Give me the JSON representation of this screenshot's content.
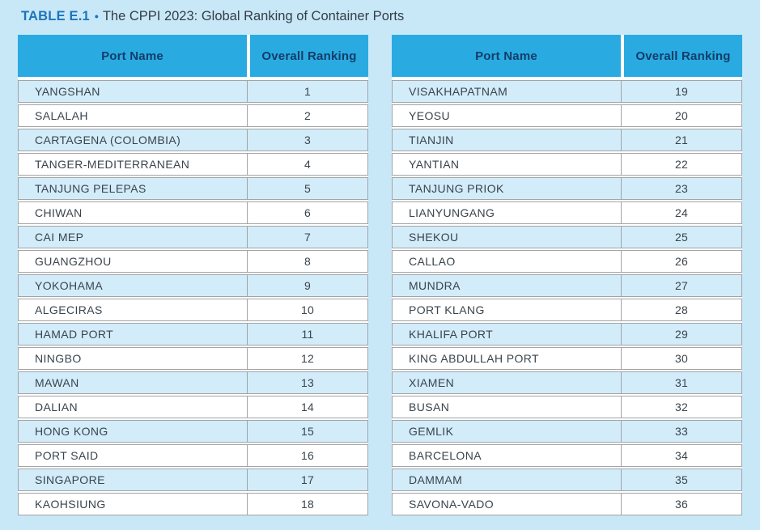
{
  "title": {
    "label": "TABLE E.1",
    "bullet": "•",
    "text": "The CPPI 2023: Global Ranking of Container Ports"
  },
  "columns": {
    "port": "Port Name",
    "ranking": "Overall Ranking"
  },
  "tables": [
    {
      "rows": [
        {
          "port": "YANGSHAN",
          "rank": "1"
        },
        {
          "port": "SALALAH",
          "rank": "2"
        },
        {
          "port": "CARTAGENA (COLOMBIA)",
          "rank": "3"
        },
        {
          "port": "TANGER-MEDITERRANEAN",
          "rank": "4"
        },
        {
          "port": "TANJUNG PELEPAS",
          "rank": "5"
        },
        {
          "port": "CHIWAN",
          "rank": "6"
        },
        {
          "port": "CAI MEP",
          "rank": "7"
        },
        {
          "port": "GUANGZHOU",
          "rank": "8"
        },
        {
          "port": "YOKOHAMA",
          "rank": "9"
        },
        {
          "port": "ALGECIRAS",
          "rank": "10"
        },
        {
          "port": "HAMAD PORT",
          "rank": "11"
        },
        {
          "port": "NINGBO",
          "rank": "12"
        },
        {
          "port": "MAWAN",
          "rank": "13"
        },
        {
          "port": "DALIAN",
          "rank": "14"
        },
        {
          "port": "HONG KONG",
          "rank": "15"
        },
        {
          "port": "PORT SAID",
          "rank": "16"
        },
        {
          "port": "SINGAPORE",
          "rank": "17"
        },
        {
          "port": "KAOHSIUNG",
          "rank": "18"
        }
      ]
    },
    {
      "rows": [
        {
          "port": "VISAKHAPATNAM",
          "rank": "19"
        },
        {
          "port": "YEOSU",
          "rank": "20"
        },
        {
          "port": "TIANJIN",
          "rank": "21"
        },
        {
          "port": "YANTIAN",
          "rank": "22"
        },
        {
          "port": "TANJUNG PRIOK",
          "rank": "23"
        },
        {
          "port": "LIANYUNGANG",
          "rank": "24"
        },
        {
          "port": "SHEKOU",
          "rank": "25"
        },
        {
          "port": "CALLAO",
          "rank": "26"
        },
        {
          "port": "MUNDRA",
          "rank": "27"
        },
        {
          "port": "PORT KLANG",
          "rank": "28"
        },
        {
          "port": "KHALIFA PORT",
          "rank": "29"
        },
        {
          "port": "KING ABDULLAH PORT",
          "rank": "30"
        },
        {
          "port": "XIAMEN",
          "rank": "31"
        },
        {
          "port": "BUSAN",
          "rank": "32"
        },
        {
          "port": "GEMLIK",
          "rank": "33"
        },
        {
          "port": "BARCELONA",
          "rank": "34"
        },
        {
          "port": "DAMMAM",
          "rank": "35"
        },
        {
          "port": "SAVONA-VADO",
          "rank": "36"
        }
      ]
    }
  ],
  "colors": {
    "page_background": "#c9e8f7",
    "header_background": "#29abe2",
    "header_text": "#133d68",
    "row_alt_background": "#d2ecfa",
    "row_background": "#ffffff",
    "body_text": "#3a444c",
    "title_accent": "#1c75bc",
    "border": "#a2a4a6"
  }
}
